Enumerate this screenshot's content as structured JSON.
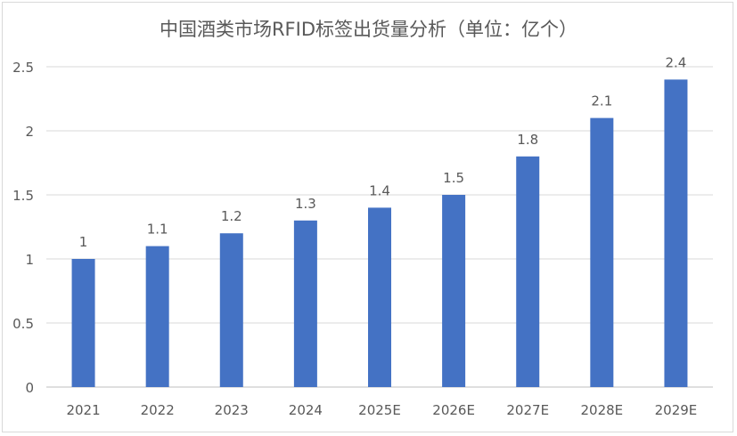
{
  "chart_data": {
    "type": "bar",
    "title": "中国酒类市场RFID标签出货量分析（单位：亿个）",
    "categories": [
      "2021",
      "2022",
      "2023",
      "2024",
      "2025E",
      "2026E",
      "2027E",
      "2028E",
      "2029E"
    ],
    "values": [
      1,
      1.1,
      1.2,
      1.3,
      1.4,
      1.5,
      1.8,
      2.1,
      2.4
    ],
    "data_labels": [
      "1",
      "1.1",
      "1.2",
      "1.3",
      "1.4",
      "1.5",
      "1.8",
      "2.1",
      "2.4"
    ],
    "ylim": [
      0,
      2.5
    ],
    "yticks": [
      "0",
      "0.5",
      "1",
      "1.5",
      "2",
      "2.5"
    ],
    "grid": true,
    "legend": "none",
    "bar_color": "#4472C4",
    "text_color": "#595959",
    "grid_color": "#D9D9D9"
  }
}
